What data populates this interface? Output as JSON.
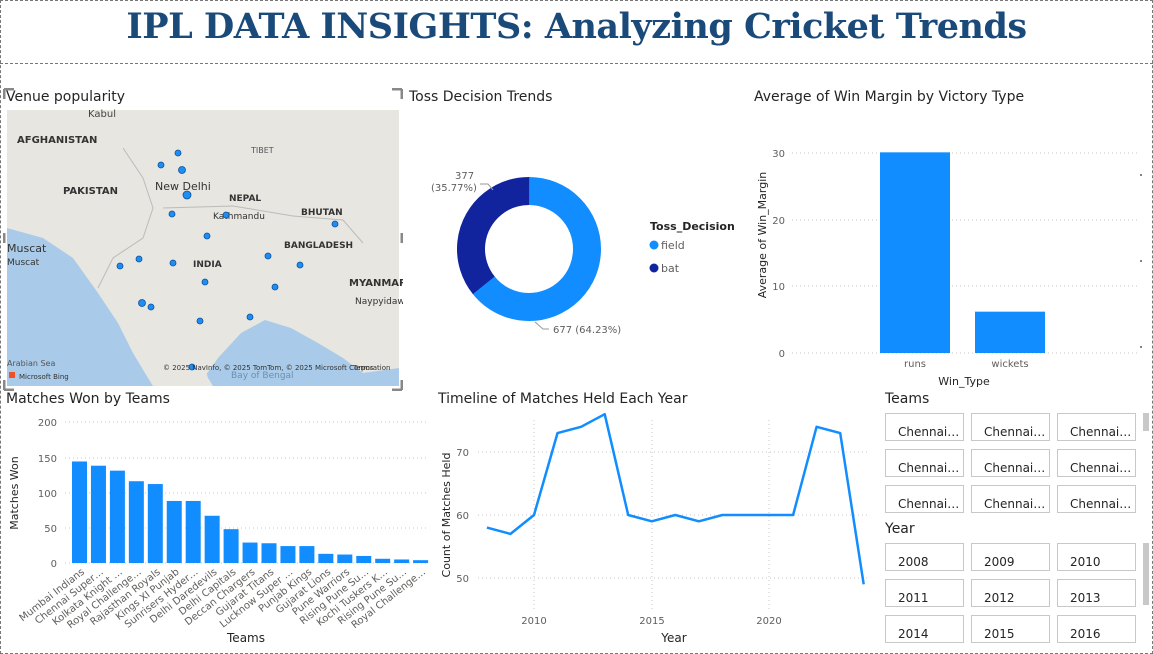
{
  "page": {
    "title": "IPL DATA INSIGHTS: Analyzing Cricket Trends"
  },
  "map": {
    "title": "Venue popularity",
    "labels": [
      "Kabul",
      "AFGHANISTAN",
      "PAKISTAN",
      "New Delhi",
      "NEPAL",
      "Kathmandu",
      "BHUTAN",
      "TIBET",
      "BANGLADESH",
      "INDIA",
      "Muscat",
      "Muscat",
      "MYANMAR",
      "Naypyidaw",
      "Arabian Sea",
      "Bay of Bengal"
    ],
    "attribution": "© 2025 NavInfo, © 2025 TomTom, © 2025 Microsoft Corporation",
    "terms": "Terms",
    "brand": "Microsoft Bing",
    "land_color": "#e8e6e1",
    "water_color": "#a9cbe9",
    "marker_color": "#1f8ef1"
  },
  "toss": {
    "title": "Toss Decision Trends",
    "legend_title": "Toss_Decision",
    "field_label": "field",
    "bat_label": "bat",
    "bat_value": "377",
    "bat_pct": "(35.77%)",
    "field_label_text": "677 (64.23%)",
    "field_color": "#118dff",
    "bat_color": "#12239e"
  },
  "margin": {
    "title": "Average of Win Margin by Victory Type",
    "xlabel": "Win_Type",
    "ylabel": "Average of Win_Margin",
    "ticks": [
      "0",
      "10",
      "20",
      "30"
    ],
    "categories": [
      "runs",
      "wickets"
    ]
  },
  "teams_chart": {
    "title": "Matches Won by Teams",
    "xlabel": "Teams",
    "ylabel": "Matches Won",
    "ticks": [
      "0",
      "50",
      "100",
      "150",
      "200"
    ]
  },
  "timeline": {
    "title": "Timeline of Matches Held Each Year",
    "xlabel": "Year",
    "ylabel": "Count of Matches Held",
    "yticks": [
      "50",
      "60",
      "70"
    ],
    "xticks": [
      "2010",
      "2015",
      "2020"
    ]
  },
  "teams_slicer": {
    "title": "Teams",
    "items": [
      "Chennai…",
      "Chennai…",
      "Chennai…",
      "Chennai…",
      "Chennai…",
      "Chennai…",
      "Chennai…",
      "Chennai…",
      "Chennai…"
    ]
  },
  "year_slicer": {
    "title": "Year",
    "items": [
      "2008",
      "2009",
      "2010",
      "2011",
      "2012",
      "2013",
      "2014",
      "2015",
      "2016"
    ]
  },
  "chart_data": [
    {
      "type": "pie",
      "title": "Toss Decision Trends",
      "labels": [
        "field",
        "bat"
      ],
      "values": [
        677,
        377
      ],
      "percents": [
        64.23,
        35.77
      ],
      "donut": true,
      "legend": "right"
    },
    {
      "type": "bar",
      "title": "Average of Win Margin by Victory Type",
      "categories": [
        "runs",
        "wickets"
      ],
      "values": [
        30.1,
        6.2
      ],
      "xlabel": "Win_Type",
      "ylabel": "Average of Win_Margin",
      "ylim": [
        0,
        33
      ],
      "color": "#118dff"
    },
    {
      "type": "bar",
      "title": "Matches Won by Teams",
      "categories": [
        "Mumbai Indians",
        "Chennai Super…",
        "Kolkata Knight …",
        "Royal Challenge…",
        "Rajasthan Royals",
        "Kings XI Punjab",
        "Sunrisers Hyder…",
        "Delhi Daredevils",
        "Delhi Capitals",
        "Deccan Chargers",
        "Gujarat Titans",
        "Lucknow Super …",
        "Punjab Kings",
        "Gujarat Lions",
        "Pune Warriors",
        "Rising Pune Su…",
        "Kochi Tuskers K…",
        "Rising Pune Su…",
        "Royal Challenge…"
      ],
      "values": [
        144,
        138,
        131,
        116,
        112,
        88,
        88,
        67,
        48,
        29,
        28,
        24,
        24,
        13,
        12,
        10,
        6,
        5,
        4
      ],
      "xlabel": "Teams",
      "ylabel": "Matches Won",
      "ylim": [
        0,
        200
      ],
      "color": "#118dff"
    },
    {
      "type": "line",
      "title": "Timeline of Matches Held Each Year",
      "x": [
        2008,
        2009,
        2010,
        2011,
        2012,
        2013,
        2014,
        2015,
        2016,
        2017,
        2018,
        2019,
        2020,
        2021,
        2022,
        2023,
        2024
      ],
      "values": [
        58,
        57,
        60,
        73,
        74,
        76,
        60,
        59,
        60,
        59,
        60,
        60,
        60,
        60,
        74,
        73,
        49
      ],
      "xlabel": "Year",
      "ylabel": "Count of Matches Held",
      "ylim": [
        45,
        76
      ],
      "color": "#118dff"
    }
  ]
}
